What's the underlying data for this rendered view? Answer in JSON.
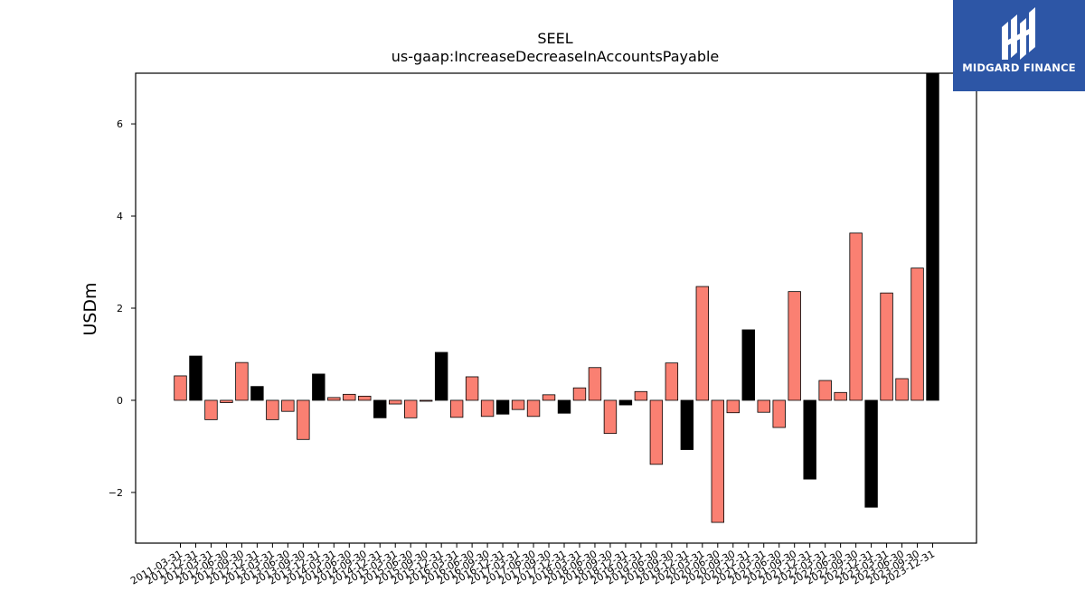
{
  "chart_data": {
    "type": "bar",
    "title": "SEEL",
    "subtitle": "us-gaap:IncreaseDecreaseInAccountsPayable",
    "ylabel": "USDm",
    "xlabel": "",
    "ylim": [
      -3.1,
      7.1
    ],
    "yticks": [
      -2,
      0,
      2,
      4,
      6
    ],
    "grid": false,
    "colors": {
      "quarter": "#fa8072",
      "annual": "#000000"
    },
    "categories": [
      "2011-03-31",
      "2011-12-31",
      "2012-03-31",
      "2012-06-30",
      "2012-09-30",
      "2012-12-31",
      "2013-03-31",
      "2013-06-30",
      "2013-09-30",
      "2013-12-31",
      "2014-03-31",
      "2014-06-30",
      "2014-09-30",
      "2014-12-31",
      "2015-03-31",
      "2015-06-30",
      "2015-09-30",
      "2015-12-31",
      "2016-03-31",
      "2016-06-30",
      "2016-09-30",
      "2016-12-31",
      "2017-03-31",
      "2017-06-30",
      "2017-09-30",
      "2017-12-31",
      "2018-03-31",
      "2018-06-30",
      "2018-09-30",
      "2018-12-31",
      "2019-03-31",
      "2019-06-30",
      "2019-09-30",
      "2019-12-31",
      "2020-03-31",
      "2020-06-30",
      "2020-09-30",
      "2020-12-31",
      "2021-03-31",
      "2021-06-30",
      "2021-09-30",
      "2021-12-31",
      "2022-03-31",
      "2022-06-30",
      "2022-09-30",
      "2022-12-31",
      "2023-03-31",
      "2023-06-30",
      "2023-09-30",
      "2023-12-31"
    ],
    "values": [
      0.53,
      0.96,
      -0.42,
      -0.05,
      0.82,
      0.3,
      -0.42,
      -0.24,
      -0.85,
      0.57,
      0.06,
      0.13,
      0.09,
      -0.38,
      -0.08,
      -0.38,
      -0.02,
      1.04,
      -0.37,
      0.51,
      -0.35,
      -0.3,
      -0.2,
      -0.35,
      0.12,
      -0.28,
      0.27,
      0.71,
      -0.72,
      -0.1,
      0.19,
      -1.39,
      0.81,
      -1.07,
      2.47,
      -2.65,
      -0.27,
      1.53,
      -0.26,
      -0.59,
      2.36,
      -1.71,
      0.43,
      0.17,
      3.63,
      -2.32,
      2.33,
      0.47,
      2.87,
      7.1
    ],
    "annual": [
      false,
      true,
      false,
      false,
      false,
      true,
      false,
      false,
      false,
      true,
      false,
      false,
      false,
      true,
      false,
      false,
      false,
      true,
      false,
      false,
      false,
      true,
      false,
      false,
      false,
      true,
      false,
      false,
      false,
      true,
      false,
      false,
      false,
      true,
      false,
      false,
      false,
      true,
      false,
      false,
      false,
      true,
      false,
      false,
      false,
      true,
      false,
      false,
      false,
      true
    ]
  },
  "logo": {
    "text": "MIDGARD FINANCE"
  }
}
